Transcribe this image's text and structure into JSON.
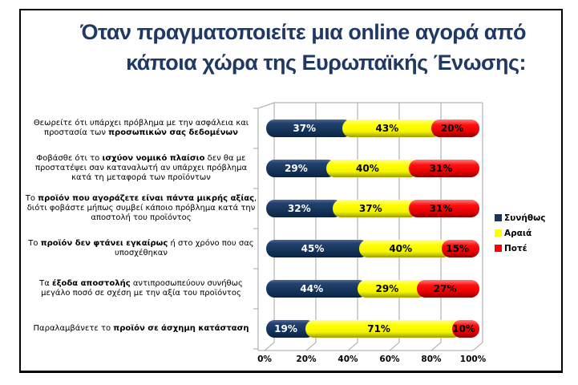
{
  "title": {
    "line1": "Όταν πραγματοποιείτε μια online αγορά από",
    "line2": "κάποια χώρα της Ευρωπαϊκής Ένωσης:",
    "color": "#1f3864"
  },
  "chart_data": {
    "type": "bar",
    "orientation": "horizontal",
    "stacked": true,
    "grid": true,
    "style": "3d-cylinder",
    "legend_position": "right",
    "xlim": [
      0,
      100
    ],
    "xticks": [
      "0%",
      "20%",
      "40%",
      "60%",
      "80%",
      "100%"
    ],
    "value_suffix": "%",
    "categories": [
      [
        {
          "t": "Θεωρείτε ότι υπάρχει πρόβλημα με την ασφάλεια και προστασία των ",
          "b": false
        },
        {
          "t": "προσωπικών σας δεδομένων",
          "b": true
        }
      ],
      [
        {
          "t": "Φοβάσθε ότι το ",
          "b": false
        },
        {
          "t": "ισχύον νομικό πλαίσιο",
          "b": true
        },
        {
          "t": " δεν θα με προστατέψει σαν καταναλωτή αν υπάρχει πρόβλημα κατά τη μεταφορά των προϊόντων",
          "b": false
        }
      ],
      [
        {
          "t": "Το ",
          "b": false
        },
        {
          "t": "προϊόν που αγοράζετε είναι πάντα μικρής αξίας",
          "b": true
        },
        {
          "t": ", διότι φοβάστε μήπως συμβεί κάποιο πρόβλημα κατά την αποστολή του προϊόντος",
          "b": false
        }
      ],
      [
        {
          "t": "Το ",
          "b": false
        },
        {
          "t": "προϊόν δεν φτάνει εγκαίρως",
          "b": true
        },
        {
          "t": " ή στο χρόνο που σας υποσχέθηκαν",
          "b": false
        }
      ],
      [
        {
          "t": "Τα ",
          "b": false
        },
        {
          "t": "έξοδα αποστολής",
          "b": true
        },
        {
          "t": " αντιπροσωπεύουν συνήθως μεγάλο ποσό σε σχέση με την αξία του προϊόντος",
          "b": false
        }
      ],
      [
        {
          "t": "Παραλαμβάνετε το ",
          "b": false
        },
        {
          "t": "προϊόν σε άσχημη κατάσταση",
          "b": true
        }
      ]
    ],
    "series": [
      {
        "name": "Συνήθως",
        "key": "usually",
        "color": "#16365c",
        "label_color": "#ffffff",
        "values": [
          37,
          29,
          32,
          45,
          44,
          19
        ]
      },
      {
        "name": "Αραιά",
        "key": "rarely",
        "color": "#ffff00",
        "label_color": "#000000",
        "values": [
          43,
          40,
          37,
          40,
          29,
          71
        ]
      },
      {
        "name": "Ποτέ",
        "key": "never",
        "color": "#ff0000",
        "label_color": "#000000",
        "values": [
          20,
          31,
          31,
          15,
          27,
          10
        ]
      }
    ]
  }
}
